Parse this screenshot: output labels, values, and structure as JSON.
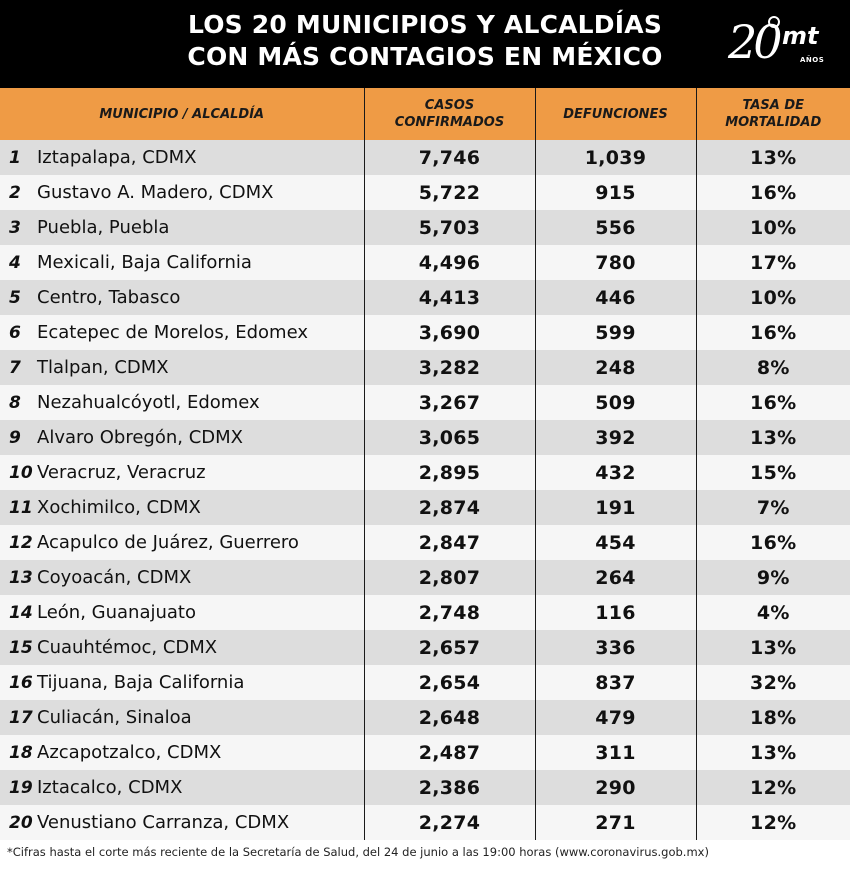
{
  "title": {
    "line1": "LOS 20 MUNICIPIOS Y ALCALDÍAS",
    "line2": "CON MÁS CONTAGIOS EN MÉXICO"
  },
  "logo": {
    "number": "20",
    "brand": "mt",
    "sub": "AÑOS"
  },
  "chart_data": {
    "type": "table",
    "columns": [
      "MUNICIPIO / ALCALDÍA",
      "CASOS CONFIRMADOS",
      "DEFUNCIONES",
      "TASA DE MORTALIDAD"
    ],
    "headers": [
      {
        "line1": "MUNICIPIO / ALCALDÍA",
        "line2": ""
      },
      {
        "line1": "CASOS",
        "line2": "CONFIRMADOS"
      },
      {
        "line1": "DEFUNCIONES",
        "line2": ""
      },
      {
        "line1": "TASA DE",
        "line2": "MORTALIDAD"
      }
    ],
    "rows": [
      {
        "rank": "1",
        "name": "Iztapalapa, CDMX",
        "cases": "7,746",
        "deaths": "1,039",
        "rate": "13%"
      },
      {
        "rank": "2",
        "name": "Gustavo A. Madero, CDMX",
        "cases": "5,722",
        "deaths": "915",
        "rate": "16%"
      },
      {
        "rank": "3",
        "name": "Puebla, Puebla",
        "cases": "5,703",
        "deaths": "556",
        "rate": "10%"
      },
      {
        "rank": "4",
        "name": "Mexicali, Baja California",
        "cases": "4,496",
        "deaths": "780",
        "rate": "17%"
      },
      {
        "rank": "5",
        "name": "Centro, Tabasco",
        "cases": "4,413",
        "deaths": "446",
        "rate": "10%"
      },
      {
        "rank": "6",
        "name": "Ecatepec de Morelos, Edomex",
        "cases": "3,690",
        "deaths": "599",
        "rate": "16%"
      },
      {
        "rank": "7",
        "name": "Tlalpan, CDMX",
        "cases": "3,282",
        "deaths": "248",
        "rate": "8%"
      },
      {
        "rank": "8",
        "name": "Nezahualcóyotl, Edomex",
        "cases": "3,267",
        "deaths": "509",
        "rate": "16%"
      },
      {
        "rank": "9",
        "name": "Alvaro Obregón, CDMX",
        "cases": "3,065",
        "deaths": "392",
        "rate": "13%"
      },
      {
        "rank": "10",
        "name": "Veracruz, Veracruz",
        "cases": "2,895",
        "deaths": "432",
        "rate": "15%"
      },
      {
        "rank": "11",
        "name": "Xochimilco, CDMX",
        "cases": "2,874",
        "deaths": "191",
        "rate": "7%"
      },
      {
        "rank": "12",
        "name": "Acapulco de Juárez, Guerrero",
        "cases": "2,847",
        "deaths": "454",
        "rate": "16%"
      },
      {
        "rank": "13",
        "name": "Coyoacán, CDMX",
        "cases": "2,807",
        "deaths": "264",
        "rate": "9%"
      },
      {
        "rank": "14",
        "name": "León, Guanajuato",
        "cases": "2,748",
        "deaths": "116",
        "rate": "4%"
      },
      {
        "rank": "15",
        "name": "Cuauhtémoc, CDMX",
        "cases": "2,657",
        "deaths": "336",
        "rate": "13%"
      },
      {
        "rank": "16",
        "name": "Tijuana, Baja California",
        "cases": "2,654",
        "deaths": "837",
        "rate": "32%"
      },
      {
        "rank": "17",
        "name": "Culiacán, Sinaloa",
        "cases": "2,648",
        "deaths": "479",
        "rate": "18%"
      },
      {
        "rank": "18",
        "name": "Azcapotzalco, CDMX",
        "cases": "2,487",
        "deaths": "311",
        "rate": "13%"
      },
      {
        "rank": "19",
        "name": "Iztacalco, CDMX",
        "cases": "2,386",
        "deaths": "290",
        "rate": "12%"
      },
      {
        "rank": "20",
        "name": "Venustiano Carranza, CDMX",
        "cases": "2,274",
        "deaths": "271",
        "rate": "12%"
      }
    ]
  },
  "footnote": "*Cifras hasta el corte más reciente de la Secretaría de Salud, del 24 de junio a las 19:00 horas (www.coronavirus.gob.mx)",
  "colors": {
    "header_bg": "#000000",
    "column_header_bg": "#ef9b45",
    "row_odd": "#dddddd",
    "row_even": "#f6f6f6"
  }
}
